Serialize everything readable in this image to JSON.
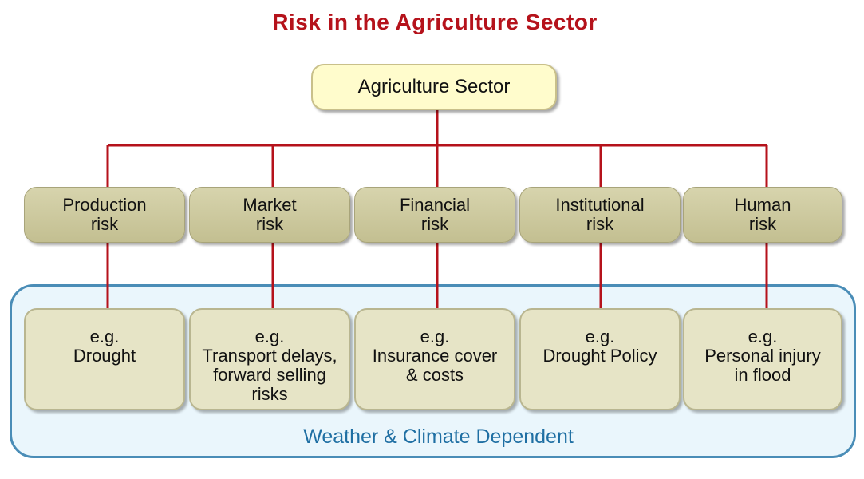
{
  "diagram": {
    "title": "Risk in the Agriculture Sector",
    "root": "Agriculture Sector",
    "risks": [
      {
        "label": "Production\nrisk",
        "example": "e.g.\nDrought"
      },
      {
        "label": "Market\nrisk",
        "example": "e.g.\nTransport delays,\nforward selling\nrisks"
      },
      {
        "label": "Financial\nrisk",
        "example": "e.g.\nInsurance cover\n& costs"
      },
      {
        "label": "Institutional\nrisk",
        "example": "e.g.\nDrought Policy"
      },
      {
        "label": "Human\nrisk",
        "example": "e.g.\nPersonal injury\nin flood"
      }
    ],
    "region_label": "Weather & Climate Dependent",
    "colors": {
      "title": "#b5121b",
      "connector": "#b5121b",
      "root_fill": "#fffccc",
      "risk_fill": "#cfcba0",
      "example_fill": "#e6e4c6",
      "region_border": "#4a8db7",
      "region_fill": "#eaf6fc",
      "region_label": "#1f6fa3"
    }
  }
}
